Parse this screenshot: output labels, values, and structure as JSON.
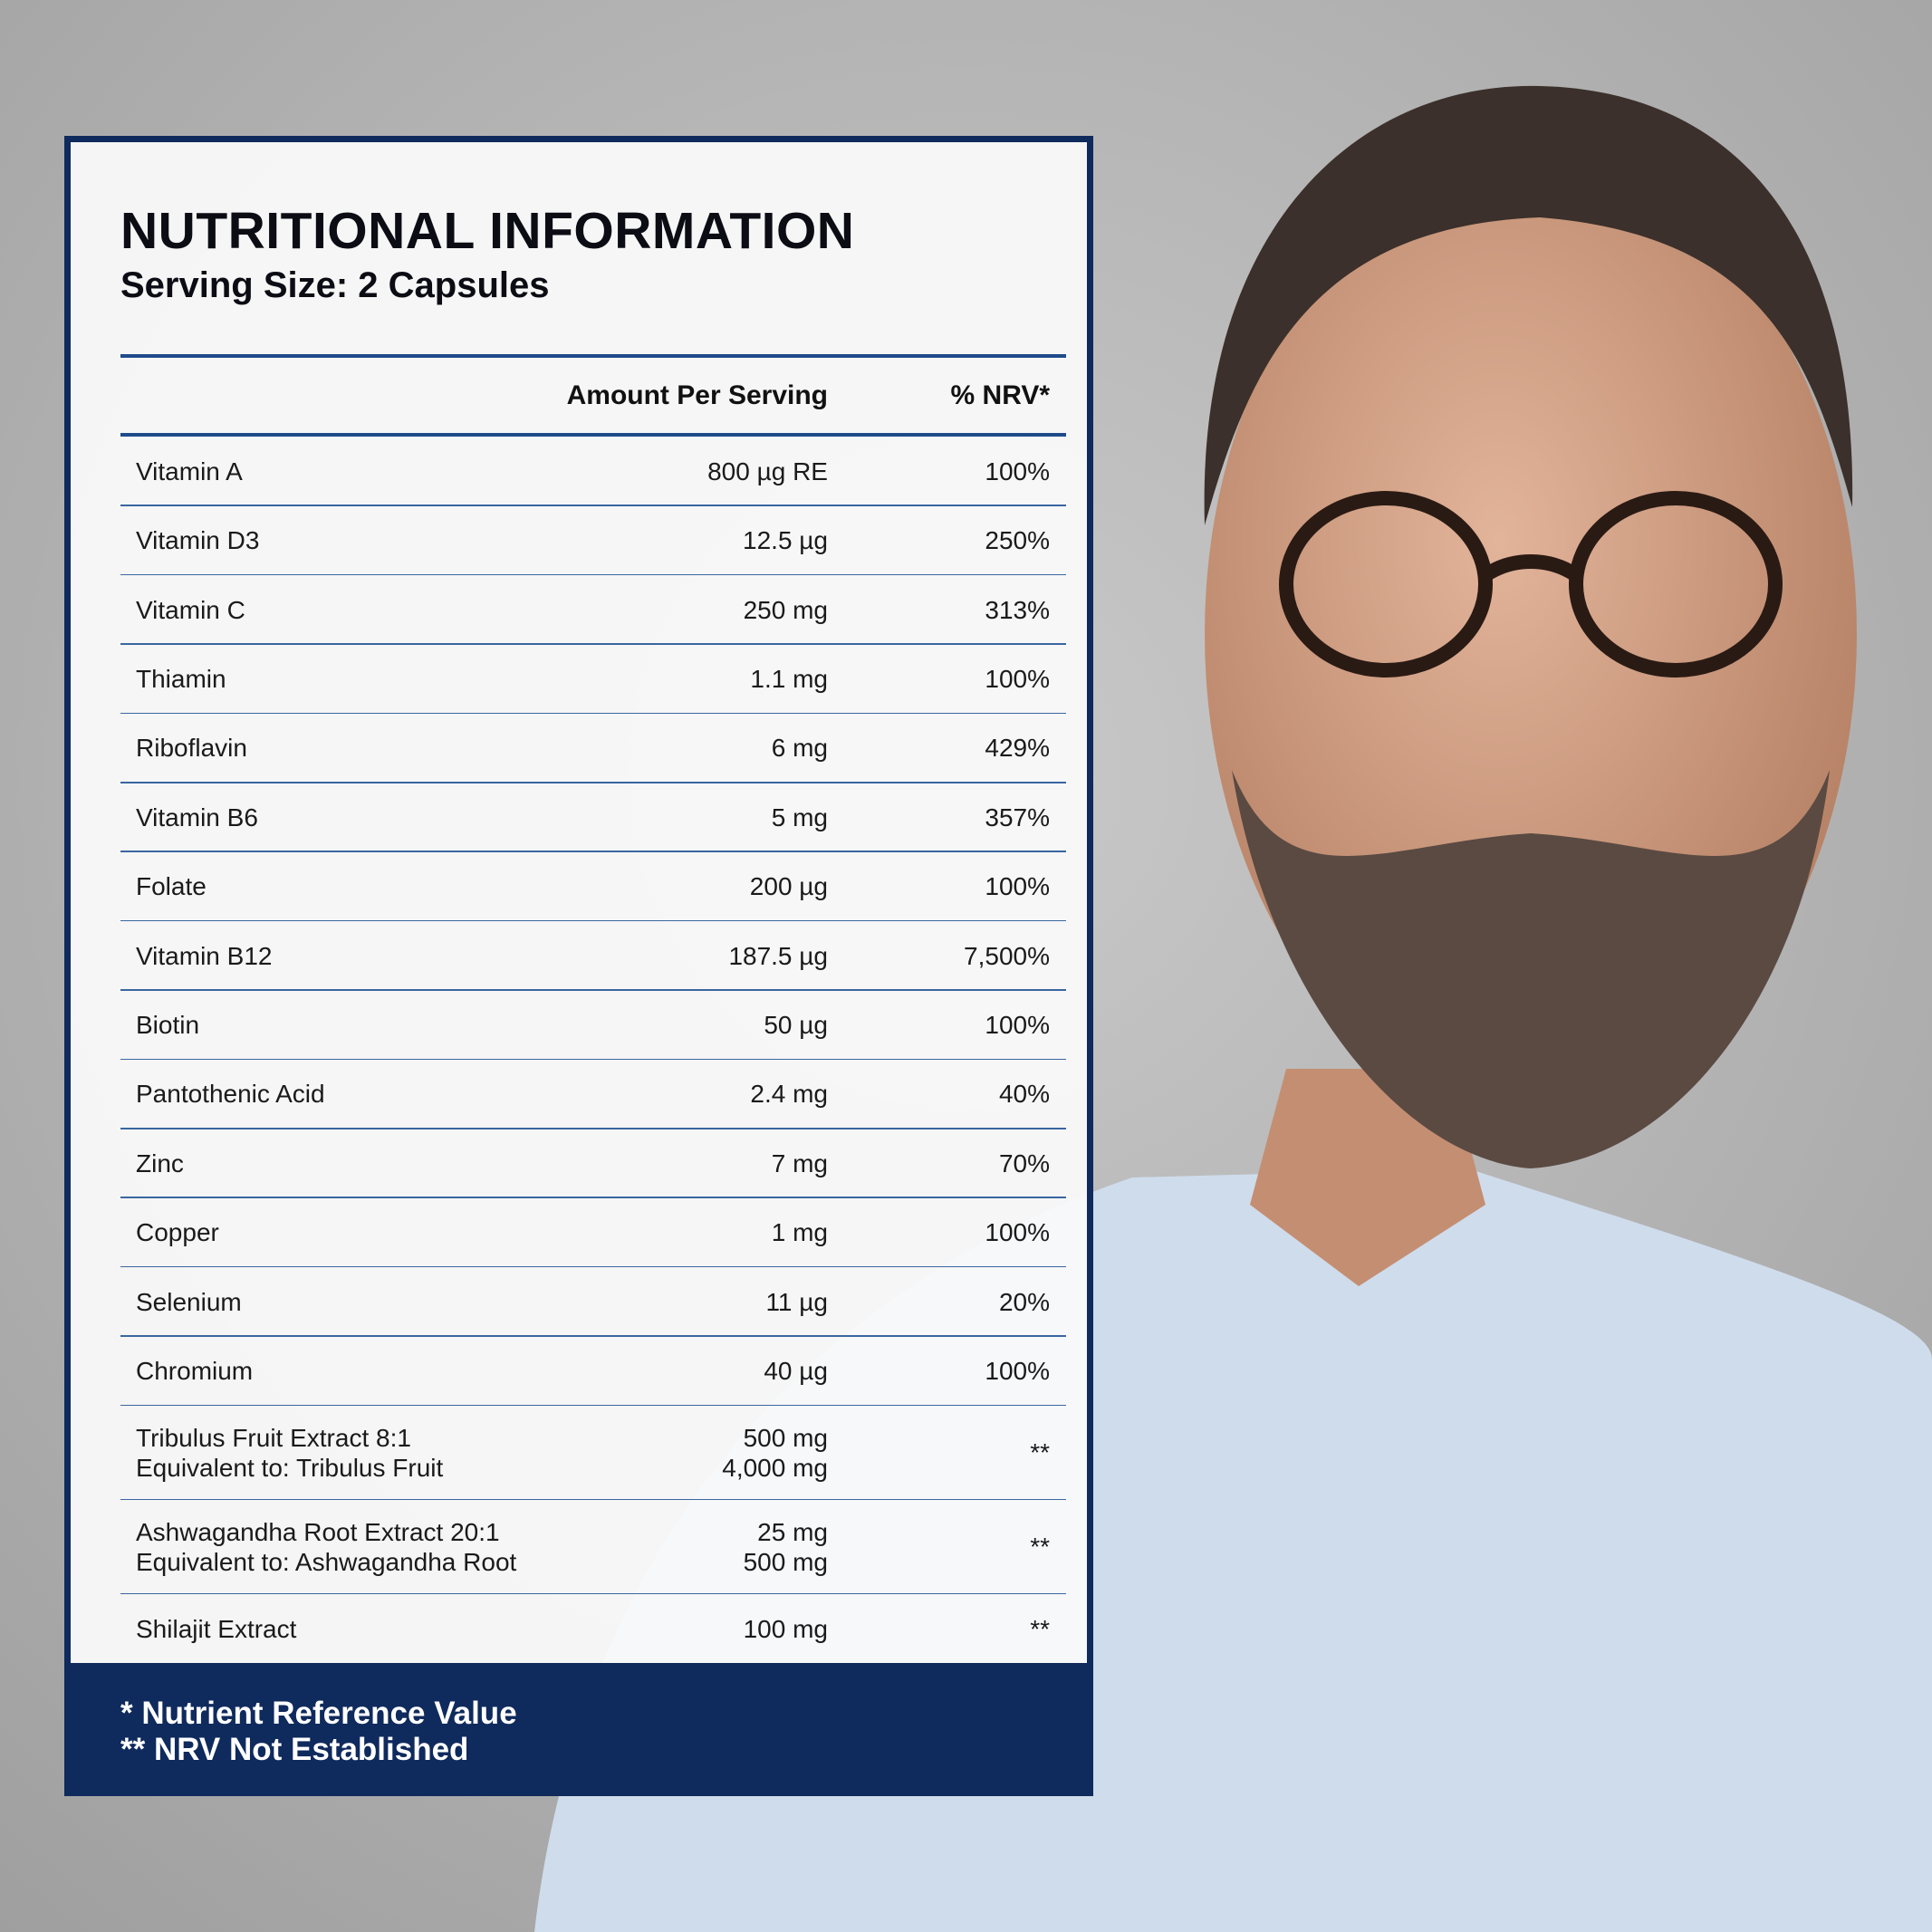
{
  "header": {
    "title": "NUTRITIONAL INFORMATION",
    "serving_size": "Serving Size: 2 Capsules"
  },
  "table": {
    "columns": [
      "Amount Per Serving",
      "% NRV*"
    ],
    "rows": [
      {
        "name": [
          "Vitamin A"
        ],
        "amount": [
          "800 µg RE"
        ],
        "nrv": "100%"
      },
      {
        "name": [
          "Vitamin D3"
        ],
        "amount": [
          "12.5 µg"
        ],
        "nrv": "250%"
      },
      {
        "name": [
          "Vitamin C"
        ],
        "amount": [
          "250 mg"
        ],
        "nrv": "313%"
      },
      {
        "name": [
          "Thiamin"
        ],
        "amount": [
          "1.1 mg"
        ],
        "nrv": "100%"
      },
      {
        "name": [
          "Riboflavin"
        ],
        "amount": [
          "6 mg"
        ],
        "nrv": "429%"
      },
      {
        "name": [
          "Vitamin B6"
        ],
        "amount": [
          "5 mg"
        ],
        "nrv": "357%"
      },
      {
        "name": [
          "Folate"
        ],
        "amount": [
          "200 µg"
        ],
        "nrv": "100%"
      },
      {
        "name": [
          "Vitamin B12"
        ],
        "amount": [
          "187.5 µg"
        ],
        "nrv": "7,500%"
      },
      {
        "name": [
          "Biotin"
        ],
        "amount": [
          "50 µg"
        ],
        "nrv": "100%"
      },
      {
        "name": [
          "Pantothenic Acid"
        ],
        "amount": [
          "2.4 mg"
        ],
        "nrv": "40%"
      },
      {
        "name": [
          "Zinc"
        ],
        "amount": [
          "7 mg"
        ],
        "nrv": "70%"
      },
      {
        "name": [
          "Copper"
        ],
        "amount": [
          "1 mg"
        ],
        "nrv": "100%"
      },
      {
        "name": [
          "Selenium"
        ],
        "amount": [
          "11 µg"
        ],
        "nrv": "20%"
      },
      {
        "name": [
          "Chromium"
        ],
        "amount": [
          "40 µg"
        ],
        "nrv": "100%"
      },
      {
        "name": [
          "Tribulus Fruit Extract 8:1",
          "Equivalent to: Tribulus Fruit"
        ],
        "amount": [
          "500 mg",
          "4,000 mg"
        ],
        "nrv": "**"
      },
      {
        "name": [
          "Ashwagandha Root Extract 20:1",
          "Equivalent to: Ashwagandha Root"
        ],
        "amount": [
          "25 mg",
          "500 mg"
        ],
        "nrv": "**"
      },
      {
        "name": [
          "Shilajit Extract"
        ],
        "amount": [
          "100 mg"
        ],
        "nrv": "**"
      }
    ]
  },
  "footnotes": [
    "* Nutrient Reference Value",
    "** NRV Not Established"
  ]
}
